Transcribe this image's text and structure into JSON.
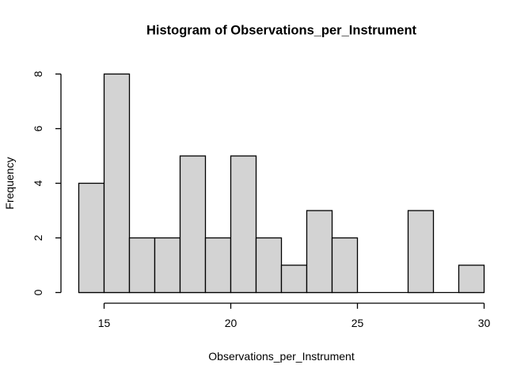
{
  "window": {
    "background": "#FFFFFF"
  },
  "chart_data": {
    "type": "bar",
    "subtype": "histogram",
    "title": "Histogram of Observations_per_Instrument",
    "xlabel": "Observations_per_Instrument",
    "ylabel": "Frequency",
    "bin_edges": [
      14,
      15,
      16,
      17,
      18,
      19,
      20,
      21,
      22,
      23,
      24,
      25,
      26,
      27,
      28,
      29,
      30
    ],
    "counts": [
      4,
      8,
      2,
      2,
      5,
      2,
      5,
      2,
      1,
      3,
      2,
      0,
      0,
      3,
      0,
      1
    ],
    "x_ticks": [
      15,
      20,
      25,
      30
    ],
    "y_ticks": [
      0,
      2,
      4,
      6,
      8
    ],
    "xlim": [
      14,
      30
    ],
    "ylim": [
      0,
      8
    ],
    "grid": false,
    "legend_position": "none",
    "bar_fill": "#D3D3D3",
    "bar_stroke": "#000000",
    "axis_color": "#000000",
    "text_color": "#000000",
    "background": "#FFFFFF"
  }
}
